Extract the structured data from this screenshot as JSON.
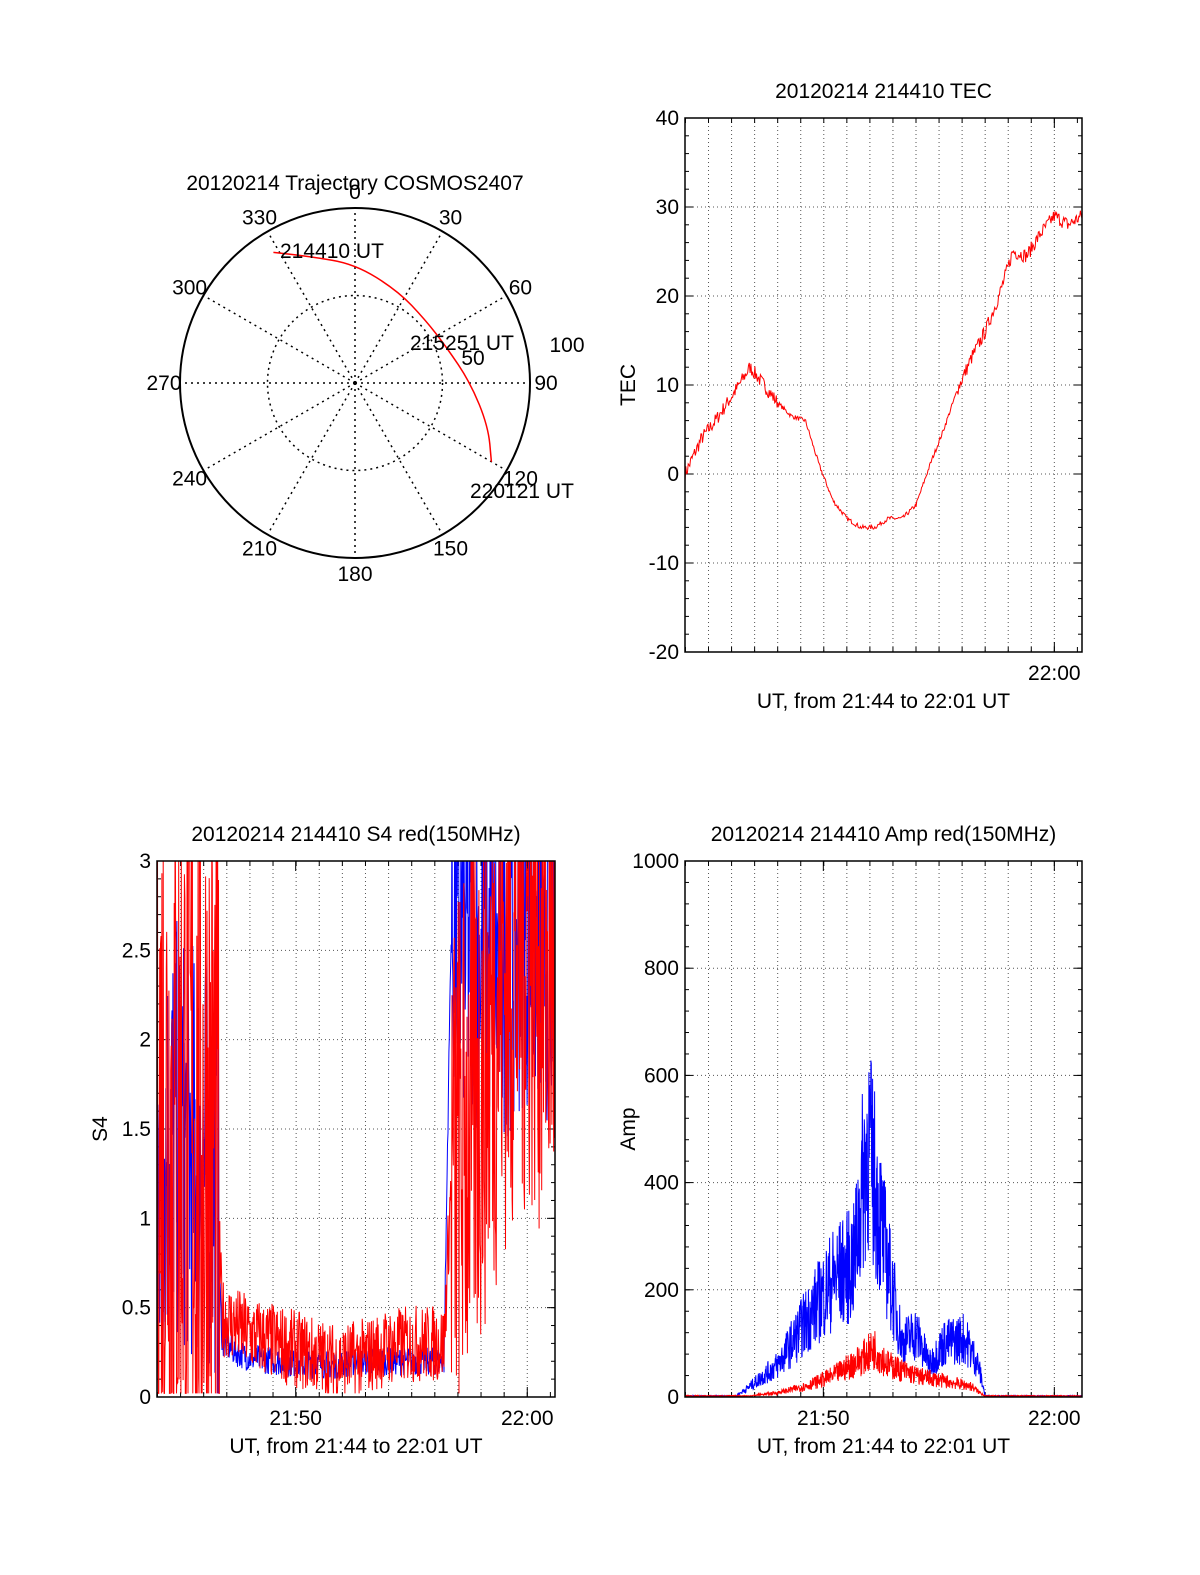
{
  "chart_data": [
    {
      "type": "polar",
      "title": "20120214 Trajectory COSMOS2407",
      "azimuth_labels": [
        "0",
        "30",
        "60",
        "90",
        "120",
        "150",
        "180",
        "210",
        "240",
        "270",
        "300",
        "330"
      ],
      "radial_labels": [
        "50",
        "100"
      ],
      "radial_max": 100,
      "grid": true,
      "trajectory_color": "#ff0000",
      "trajectory": [
        {
          "az": 328,
          "el_r": 88
        },
        {
          "az": 340,
          "el_r": 77
        },
        {
          "az": 0,
          "el_r": 68
        },
        {
          "az": 25,
          "el_r": 58
        },
        {
          "az": 48,
          "el_r": 54
        },
        {
          "az": 68,
          "el_r": 56
        },
        {
          "az": 90,
          "el_r": 66
        },
        {
          "az": 108,
          "el_r": 80
        },
        {
          "az": 120,
          "el_r": 90
        }
      ],
      "annotations": [
        {
          "text": "214410 UT"
        },
        {
          "text": "215251 UT"
        },
        {
          "text": "220121 UT"
        }
      ]
    },
    {
      "type": "line",
      "title": "20120214 214410 TEC",
      "xlabel": "UT, from 21:44 to 22:01 UT",
      "ylabel": "TEC",
      "xlim": [
        21.733,
        22.02
      ],
      "ylim": [
        -20,
        40
      ],
      "yticks": [
        "-20",
        "-10",
        "0",
        "10",
        "20",
        "30",
        "40"
      ],
      "xticks": [
        {
          "x": 22.0,
          "label": "22:00"
        }
      ],
      "grid": true,
      "series": [
        {
          "color": "#ff0000",
          "x": [
            21.733,
            21.745,
            21.755,
            21.768,
            21.78,
            21.79,
            21.8,
            21.81,
            21.82,
            21.83,
            21.84,
            21.85,
            21.86,
            21.87,
            21.88,
            21.89,
            21.9,
            21.91,
            21.92,
            21.93,
            21.94,
            21.95,
            21.96,
            21.97,
            21.98,
            21.99,
            22.0,
            22.01,
            22.02
          ],
          "y": [
            0,
            4,
            6,
            9,
            12,
            10,
            8,
            6.5,
            6,
            1,
            -3,
            -5,
            -6,
            -6,
            -5,
            -5,
            -3.5,
            1,
            5,
            9.5,
            13,
            16,
            20,
            25,
            24.5,
            27,
            29,
            28,
            29
          ]
        }
      ]
    },
    {
      "type": "line",
      "title": "20120214 214410 S4 red(150MHz)",
      "xlabel": "UT, from 21:44 to 22:01 UT",
      "ylabel": "S4",
      "xlim": [
        21.733,
        22.02
      ],
      "ylim": [
        0,
        3
      ],
      "yticks": [
        "0",
        "0.5",
        "1",
        "1.5",
        "2",
        "2.5",
        "3"
      ],
      "xticks": [
        {
          "x": 21.833,
          "label": "21:50"
        },
        {
          "x": 22.0,
          "label": "22:00"
        }
      ],
      "grid": true,
      "series": [
        {
          "color": "#0000ff",
          "x": [
            21.733,
            21.745,
            21.755,
            21.775,
            21.78,
            21.79,
            21.8,
            21.82,
            21.84,
            21.86,
            21.88,
            21.9,
            21.92,
            21.94,
            21.945,
            21.96,
            21.98,
            22.0,
            22.02
          ],
          "y": [
            1.3,
            1.5,
            1.4,
            1.3,
            0.3,
            0.25,
            0.22,
            0.2,
            0.18,
            0.18,
            0.2,
            0.2,
            0.2,
            0.2,
            2.6,
            2.5,
            2.4,
            2.6,
            2.5
          ]
        },
        {
          "color": "#ff0000",
          "x": [
            21.733,
            21.745,
            21.755,
            21.775,
            21.78,
            21.8,
            21.82,
            21.84,
            21.86,
            21.88,
            21.9,
            21.92,
            21.94,
            21.945,
            21.96,
            21.98,
            22.0,
            22.02
          ],
          "y": [
            1.6,
            1.5,
            1.5,
            1.4,
            0.45,
            0.35,
            0.3,
            0.25,
            0.2,
            0.22,
            0.28,
            0.3,
            0.3,
            1.2,
            1.6,
            2.3,
            2.6,
            2.4
          ]
        }
      ]
    },
    {
      "type": "line",
      "title": "20120214 214410 Amp red(150MHz)",
      "xlabel": "UT, from 21:44 to 22:01 UT",
      "ylabel": "Amp",
      "xlim": [
        21.733,
        22.02
      ],
      "ylim": [
        0,
        1000
      ],
      "yticks": [
        "0",
        "200",
        "400",
        "600",
        "800",
        "1000"
      ],
      "xticks": [
        {
          "x": 21.833,
          "label": "21:50"
        },
        {
          "x": 22.0,
          "label": "22:00"
        }
      ],
      "grid": true,
      "series": [
        {
          "color": "#0000ff",
          "x": [
            21.733,
            21.77,
            21.78,
            21.8,
            21.82,
            21.84,
            21.855,
            21.865,
            21.87,
            21.88,
            21.89,
            21.9,
            21.91,
            21.92,
            21.935,
            21.945,
            21.95,
            21.96,
            22.0,
            22.02
          ],
          "y": [
            2,
            2,
            20,
            60,
            140,
            220,
            250,
            480,
            400,
            240,
            100,
            120,
            60,
            100,
            110,
            60,
            2,
            2,
            2,
            2
          ]
        },
        {
          "color": "#ff0000",
          "x": [
            21.733,
            21.78,
            21.8,
            21.82,
            21.84,
            21.86,
            21.87,
            21.88,
            21.9,
            21.92,
            21.94,
            21.945,
            21.95,
            22.02
          ],
          "y": [
            2,
            2,
            8,
            20,
            40,
            70,
            90,
            60,
            40,
            30,
            20,
            10,
            2,
            2
          ]
        }
      ]
    }
  ]
}
